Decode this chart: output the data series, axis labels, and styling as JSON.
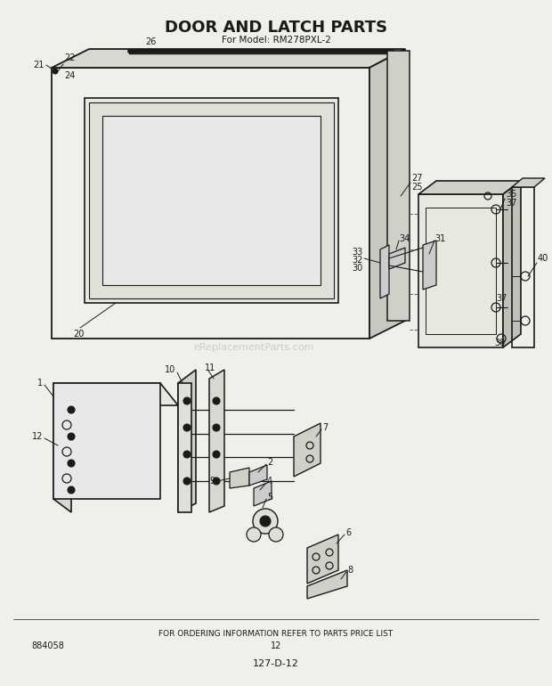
{
  "title": "DOOR AND LATCH PARTS",
  "subtitle": "For Model: RM278PXL-2",
  "footer_text": "FOR ORDERING INFORMATION REFER TO PARTS PRICE LIST",
  "page_num": "12",
  "doc_num": "127-D-12",
  "catalog_num": "884058",
  "bg_color": "#f0f0eb",
  "line_color": "#1a1a1a",
  "text_color": "#1a1a1a",
  "watermark": "eReplacementParts.com"
}
